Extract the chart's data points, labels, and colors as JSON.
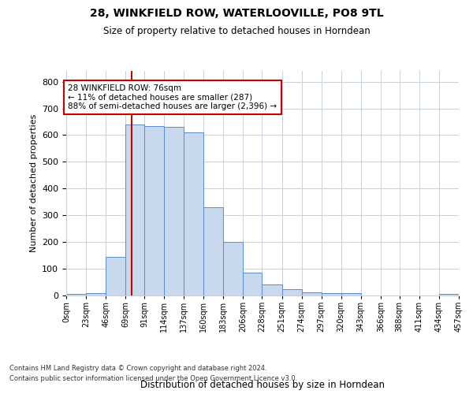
{
  "title": "28, WINKFIELD ROW, WATERLOOVILLE, PO8 9TL",
  "subtitle": "Size of property relative to detached houses in Horndean",
  "xlabel": "Distribution of detached houses by size in Horndean",
  "ylabel": "Number of detached properties",
  "footnote1": "Contains HM Land Registry data © Crown copyright and database right 2024.",
  "footnote2": "Contains public sector information licensed under the Open Government Licence v3.0.",
  "annotation_line1": "28 WINKFIELD ROW: 76sqm",
  "annotation_line2": "← 11% of detached houses are smaller (287)",
  "annotation_line3": "88% of semi-detached houses are larger (2,396) →",
  "property_size": 76,
  "bar_color": "#c8d9ee",
  "bar_edge_color": "#5b8cc8",
  "marker_color": "#cc0000",
  "annotation_box_color": "#cc0000",
  "background_color": "#ffffff",
  "grid_color": "#c8d0de",
  "bin_edges": [
    0,
    23,
    46,
    69,
    91,
    114,
    137,
    160,
    183,
    206,
    228,
    251,
    274,
    297,
    320,
    343,
    366,
    388,
    411,
    434,
    457
  ],
  "bin_labels": [
    "0sqm",
    "23sqm",
    "46sqm",
    "69sqm",
    "91sqm",
    "114sqm",
    "137sqm",
    "160sqm",
    "183sqm",
    "206sqm",
    "228sqm",
    "251sqm",
    "274sqm",
    "297sqm",
    "320sqm",
    "343sqm",
    "366sqm",
    "388sqm",
    "411sqm",
    "434sqm",
    "457sqm"
  ],
  "bar_heights": [
    5,
    10,
    145,
    640,
    635,
    630,
    610,
    330,
    200,
    85,
    40,
    25,
    12,
    10,
    10,
    0,
    0,
    0,
    0,
    5
  ],
  "ylim": [
    0,
    840
  ],
  "yticks": [
    0,
    100,
    200,
    300,
    400,
    500,
    600,
    700,
    800
  ]
}
